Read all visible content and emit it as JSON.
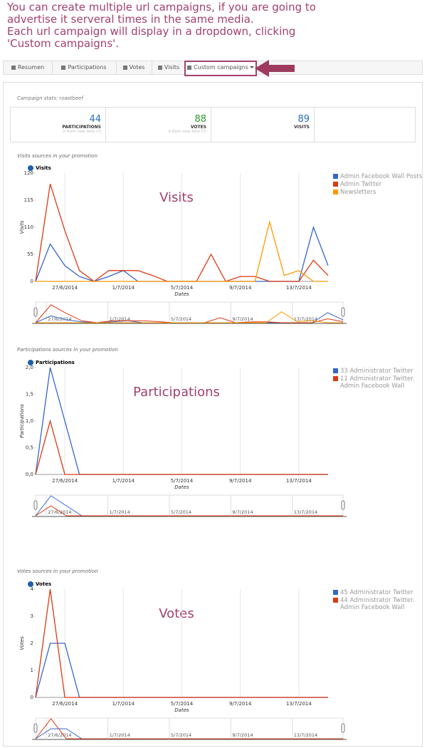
{
  "annotation": [
    "You can create multiple url campaigns, if you are going to",
    "advertise it serveral times in the same media.",
    "Each url campaign will display in a dropdown, clicking",
    "'Custom campaigns'."
  ],
  "tabs": [
    "Resumen",
    "Participations",
    "Votes",
    "Visits",
    "Custom campaigns"
  ],
  "campaign_stats": "Campaign stats: roastbeef",
  "stats": [
    {
      "value": 44,
      "label": "PARTICIPATIONS",
      "note": "0 from new fans (?)"
    },
    {
      "value": 88,
      "label": "VOTES",
      "note": "0 from new fans (?)"
    },
    {
      "value": 89,
      "label": "VISITS"
    }
  ],
  "chart_data": [
    {
      "type": "line",
      "section": "Visits sources in your promotion",
      "title": "Visits",
      "annotation": "Visits",
      "y_label": "Visits",
      "x_label": "Dates",
      "categories": [
        null,
        null,
        "27/6/2014",
        null,
        null,
        null,
        "1/7/2014",
        null,
        null,
        null,
        "5/7/2014",
        null,
        null,
        null,
        "9/7/2014",
        null,
        null,
        null,
        "13/7/2014",
        null,
        null
      ],
      "ylim": [
        0,
        120
      ],
      "yticks": [
        0,
        55,
        110,
        115,
        120
      ],
      "series": [
        {
          "name": "Admin Facebook Wall Posts",
          "color": "#3366cc",
          "values": [
            0,
            76,
            32,
            10,
            0,
            10,
            22,
            0,
            0,
            0,
            0,
            0,
            0,
            0,
            0,
            0,
            0,
            0,
            0,
            110,
            32
          ]
        },
        {
          "name": "Admin Twitter",
          "color": "#dc3912",
          "values": [
            0,
            118,
            103,
            22,
            0,
            22,
            22,
            22,
            12,
            0,
            0,
            0,
            55,
            0,
            10,
            10,
            0,
            0,
            0,
            43,
            12
          ]
        },
        {
          "name": "Newsletters",
          "color": "#ff9900",
          "values": [
            0,
            0,
            0,
            0,
            0,
            0,
            0,
            0,
            0,
            0,
            0,
            0,
            0,
            0,
            0,
            0,
            111,
            12,
            22,
            0,
            0
          ]
        }
      ]
    },
    {
      "type": "line",
      "section": "Participations sources in your promotion",
      "title": "Participations",
      "annotation": "Participations",
      "y_label": "Participations",
      "x_label": "Dates",
      "categories": [
        null,
        null,
        "27/6/2014",
        null,
        null,
        null,
        "1/7/2014",
        null,
        null,
        null,
        "5/7/2014",
        null,
        null,
        null,
        "9/7/2014",
        null,
        null,
        null,
        "13/7/2014",
        null,
        null
      ],
      "ylim": [
        0,
        2
      ],
      "yticks": [
        {
          "value": 0,
          "label": "0,0"
        },
        {
          "value": 0.5,
          "label": "0,5"
        },
        {
          "value": 1,
          "label": "1,0"
        },
        {
          "value": 1.5,
          "label": "1,5"
        },
        {
          "value": 2,
          "label": "2,0"
        }
      ],
      "series": [
        {
          "name": "33 Administrator Twitter",
          "color": "#3366cc",
          "values": [
            0,
            2,
            1,
            0,
            0,
            0,
            0,
            0,
            0,
            0,
            0,
            0,
            0,
            0,
            0,
            0,
            0,
            0,
            0,
            0,
            0
          ]
        },
        {
          "name": "11 Administrator Twitter. Admin Facebook Wall",
          "color": "#dc3912",
          "values": [
            0,
            1,
            0,
            0,
            0,
            0,
            0,
            0,
            0,
            0,
            0,
            0,
            0,
            0,
            0,
            0,
            0,
            0,
            0,
            0,
            0
          ]
        }
      ]
    },
    {
      "type": "line",
      "section": "Votes sources in your promotion",
      "title": "Votes",
      "annotation": "Votes",
      "y_label": "Votes",
      "x_label": "Dates",
      "categories": [
        null,
        null,
        "27/6/2014",
        null,
        null,
        null,
        "1/7/2014",
        null,
        null,
        null,
        "5/7/2014",
        null,
        null,
        null,
        "9/7/2014",
        null,
        null,
        null,
        "13/7/2014",
        null,
        null
      ],
      "ylim": [
        0,
        4
      ],
      "yticks": [
        0,
        1,
        2,
        3,
        4
      ],
      "series": [
        {
          "name": "45 Administrator Twitter",
          "color": "#3366cc",
          "values": [
            0,
            2,
            2,
            0,
            0,
            0,
            0,
            0,
            0,
            0,
            0,
            0,
            0,
            0,
            0,
            0,
            0,
            0,
            0,
            0,
            0
          ]
        },
        {
          "name": "44 Administrator Twitter. Admin Facebook Wall",
          "color": "#dc3912",
          "values": [
            0,
            4,
            0,
            0,
            0,
            0,
            0,
            0,
            0,
            0,
            0,
            0,
            0,
            0,
            0,
            0,
            0,
            0,
            0,
            0,
            0
          ]
        }
      ]
    }
  ]
}
